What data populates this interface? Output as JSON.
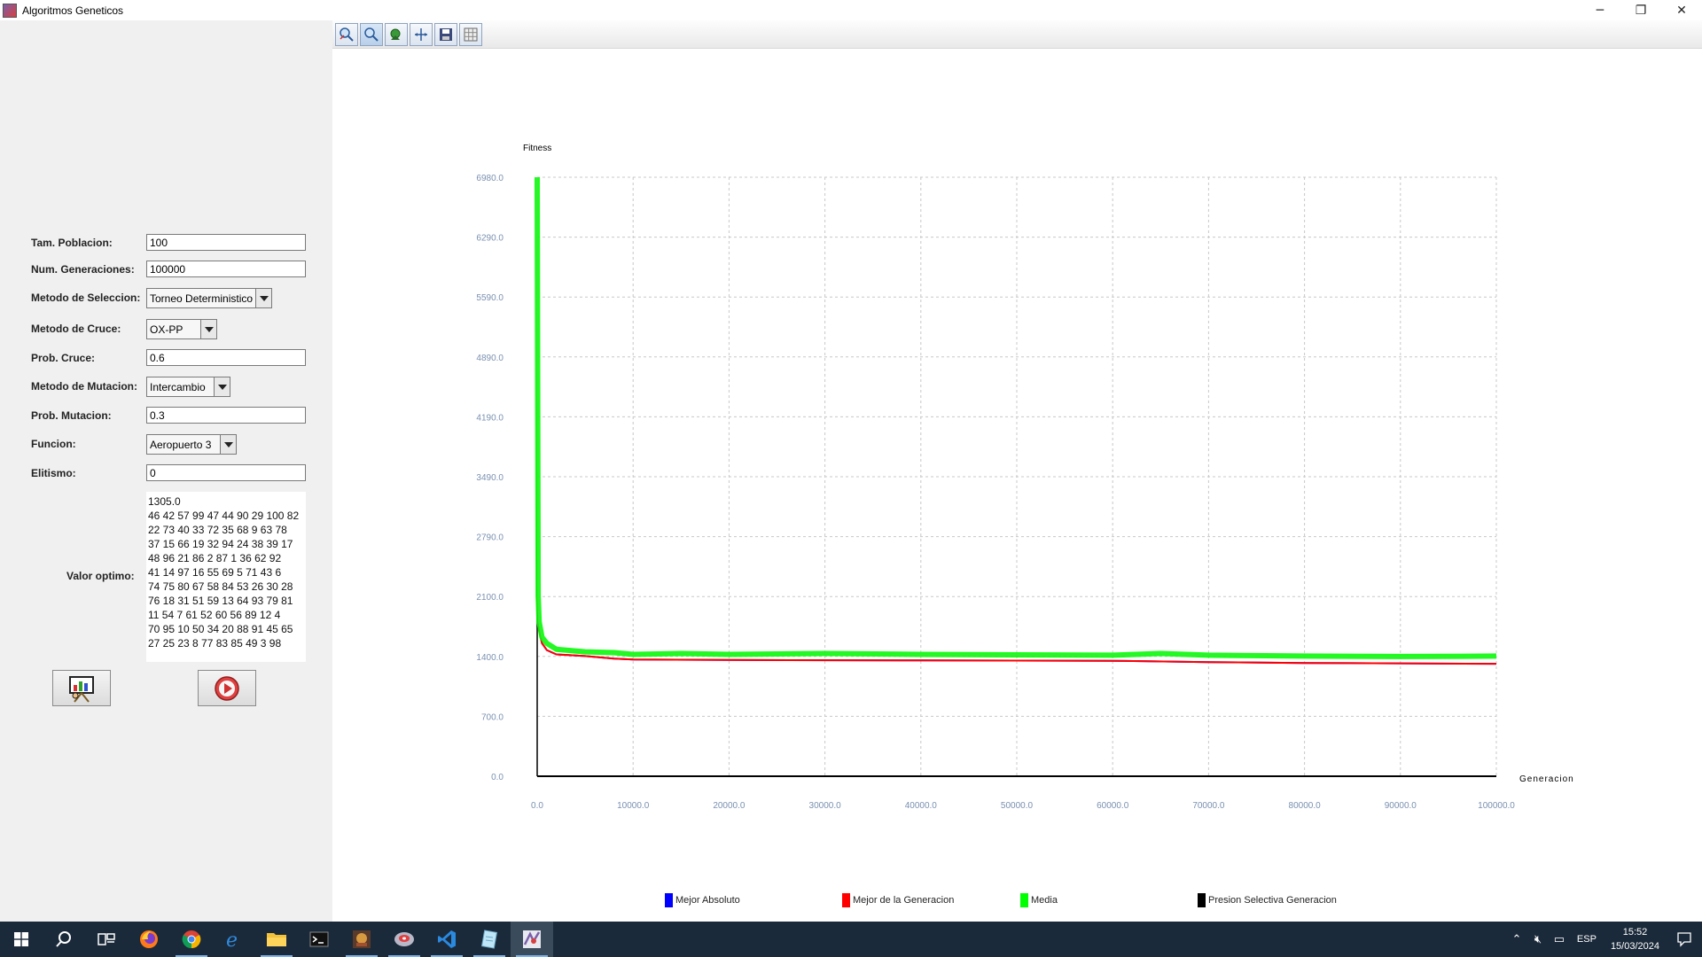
{
  "window": {
    "title": "Algoritmos Geneticos",
    "controls": {
      "minimize": "─",
      "restore": "❐",
      "close": "✕"
    }
  },
  "form": {
    "poblacion": {
      "label": "Tam. Poblacion:",
      "value": "100"
    },
    "generaciones": {
      "label": "Num. Generaciones:",
      "value": "100000"
    },
    "seleccion": {
      "label": "Metodo de Seleccion:",
      "value": "Torneo Deterministico"
    },
    "cruce": {
      "label": "Metodo de Cruce:",
      "value": "OX-PP"
    },
    "prob_cruce": {
      "label": "Prob. Cruce:",
      "value": "0.6"
    },
    "mutacion": {
      "label": "Metodo de Mutacion:",
      "value": "Intercambio"
    },
    "prob_mutacion": {
      "label": "Prob. Mutacion:",
      "value": "0.3"
    },
    "funcion": {
      "label": "Funcion:",
      "value": "Aeropuerto 3"
    },
    "elitismo": {
      "label": "Elitismo:",
      "value": "0"
    },
    "valor_optimo": {
      "label": "Valor optimo:",
      "lines": [
        "1305.0",
        "46 42 57 99 47 44 90 29 100 82",
        "22 73 40 33 72 35 68 9 63 78",
        "37 15 66 19 32 94 24 38 39 17",
        "48 96 21 86 2 87 1 36 62 92",
        "41 14 97 16 55 69 5 71 43 6",
        "74 75 80 67 58 84 53 26 30 28",
        "76 18 31 51 59 13 64 93 79 81",
        "11 54 7 61 52 60 56 89 12 4",
        "70 95 10 50 34 20 88 91 45 65",
        "27 25 23 8 77 83 85 49 3 98"
      ]
    },
    "buttons": {
      "chart_icon": "presentation-chart-icon",
      "run_icon": "play-record-icon"
    }
  },
  "toolbar": {
    "buttons": [
      "zoom-reset-icon",
      "zoom-icon",
      "pan-icon",
      "fit-icon",
      "save-icon",
      "grid-icon"
    ]
  },
  "chart_data": {
    "type": "line",
    "ylabel": "Fitness",
    "xlabel": "Generacion",
    "xlim": [
      0,
      100000
    ],
    "ylim": [
      0,
      6980
    ],
    "x_ticks": [
      "0.0",
      "10000.0",
      "20000.0",
      "30000.0",
      "40000.0",
      "50000.0",
      "60000.0",
      "70000.0",
      "80000.0",
      "90000.0",
      "100000.0"
    ],
    "y_ticks": [
      "0.0",
      "700.0",
      "1400.0",
      "2100.0",
      "2790.0",
      "3490.0",
      "4190.0",
      "4890.0",
      "5590.0",
      "6290.0",
      "6980.0"
    ],
    "grid": true,
    "legend_position": "bottom",
    "series": [
      {
        "name": "Mejor Absoluto",
        "color": "#0000ff",
        "x": [
          0,
          200,
          500,
          1000,
          2000,
          5000,
          8000,
          10000,
          20000,
          40000,
          60000,
          70000,
          80000,
          100000
        ],
        "y": [
          2100,
          1700,
          1550,
          1470,
          1420,
          1400,
          1370,
          1360,
          1355,
          1350,
          1345,
          1330,
          1320,
          1310
        ]
      },
      {
        "name": "Mejor de la Generacion",
        "color": "#ff0000",
        "x": [
          0,
          200,
          500,
          1000,
          2000,
          5000,
          8000,
          10000,
          20000,
          40000,
          60000,
          70000,
          80000,
          100000
        ],
        "y": [
          2100,
          1700,
          1550,
          1470,
          1420,
          1400,
          1370,
          1360,
          1355,
          1350,
          1345,
          1330,
          1320,
          1310
        ]
      },
      {
        "name": "Media",
        "color": "#00ff00",
        "x": [
          0,
          100,
          200,
          500,
          1000,
          2000,
          5000,
          8000,
          10000,
          15000,
          20000,
          30000,
          40000,
          50000,
          60000,
          65000,
          70000,
          80000,
          90000,
          100000
        ],
        "y": [
          6980,
          2100,
          1800,
          1620,
          1550,
          1480,
          1450,
          1440,
          1420,
          1430,
          1420,
          1430,
          1420,
          1415,
          1410,
          1430,
          1410,
          1400,
          1395,
          1400
        ]
      },
      {
        "name": "Presion Selectiva Generacion",
        "color": "#000000",
        "x": [
          0,
          100000
        ],
        "y": [
          0,
          0
        ]
      }
    ]
  },
  "taskbar": {
    "items": [
      "windows-start-icon",
      "search-icon",
      "task-view-icon",
      "firefox-icon",
      "chrome-icon",
      "edge-icon",
      "file-explorer-icon",
      "terminal-icon",
      "app-game-icon",
      "app-disk-icon",
      "vscode-icon",
      "notepad-icon",
      "algoritmos-app-icon"
    ],
    "tray": {
      "lang": "ESP",
      "time": "15:52",
      "date": "15/03/2024"
    }
  }
}
